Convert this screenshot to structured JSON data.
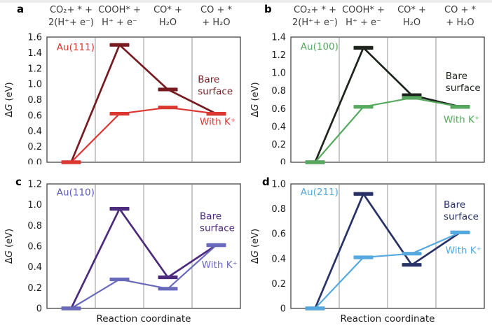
{
  "chart_data": {
    "type": "line",
    "title": "",
    "xlabel": "Reaction coordinate",
    "ylabel": "ΔG (eV)",
    "grid": false,
    "legend_position": "inline-annotations",
    "categories": [
      "CO₂+ * + 2(H⁺+ e⁻)",
      "COOH* + H⁺ + e⁻",
      "CO* + H₂O",
      "CO + * + H₂O"
    ],
    "column_headers": [
      {
        "line1": "CO₂+ * +",
        "line2": "2(H⁺+ e⁻)"
      },
      {
        "line1": "COOH* +",
        "line2": "H⁺ + e⁻"
      },
      {
        "line1": "CO* +",
        "line2": "H₂O"
      },
      {
        "line1": "CO + *",
        "line2": "+ H₂O"
      }
    ],
    "frame": {
      "border_color": "#454545",
      "separator_color": "#969696",
      "header_color": "#3b3b3b",
      "tick_color": "#1c1c1c"
    },
    "panels": [
      {
        "letter": "a",
        "surface": "Au(111)",
        "surface_label_color": "#db3832",
        "surface_label_pos": {
          "x_frac": 0.05,
          "y_ev": 1.43
        },
        "ylim": [
          0,
          1.6
        ],
        "ytick_step": 0.2,
        "ytick_labels": [
          "0.0",
          "0.2",
          "0.4",
          "0.6",
          "0.8",
          "1.0",
          "1.2",
          "1.4",
          "1.6"
        ],
        "show_headers": true,
        "show_xlabel": false,
        "series": [
          {
            "name": "Bare surface",
            "label_lines": [
              "Bare",
              "surface"
            ],
            "color": "#771b21",
            "values": [
              0.0,
              1.5,
              0.93,
              0.62
            ],
            "label_pos": {
              "x_frac": 0.78,
              "y_ev": 1.02
            }
          },
          {
            "name": "With K⁺",
            "label_lines": [
              "With K⁺"
            ],
            "color": "#db3832",
            "values": [
              0.0,
              0.62,
              0.7,
              0.62
            ],
            "label_pos": {
              "x_frac": 0.79,
              "y_ev": 0.48
            }
          }
        ]
      },
      {
        "letter": "b",
        "surface": "Au(100)",
        "surface_label_color": "#56a95e",
        "surface_label_pos": {
          "x_frac": 0.05,
          "y_ev": 1.26
        },
        "ylim": [
          0,
          1.4
        ],
        "ytick_step": 0.2,
        "ytick_labels": [
          "0",
          "0.2",
          "0.4",
          "0.6",
          "0.8",
          "1.0",
          "1.2",
          "1.4"
        ],
        "show_headers": true,
        "show_xlabel": false,
        "series": [
          {
            "name": "Bare surface",
            "label_lines": [
              "Bare",
              "surface"
            ],
            "color": "#1d241d",
            "values": [
              0.0,
              1.28,
              0.75,
              0.62
            ],
            "label_pos": {
              "x_frac": 0.8,
              "y_ev": 0.93
            }
          },
          {
            "name": "With K⁺",
            "label_lines": [
              "With K⁺"
            ],
            "color": "#56a95e",
            "values": [
              0.0,
              0.62,
              0.72,
              0.62
            ],
            "label_pos": {
              "x_frac": 0.79,
              "y_ev": 0.44
            }
          }
        ]
      },
      {
        "letter": "c",
        "surface": "Au(110)",
        "surface_label_color": "#5d5db8",
        "surface_label_pos": {
          "x_frac": 0.05,
          "y_ev": 1.09
        },
        "ylim": [
          0,
          1.2
        ],
        "ytick_step": 0.2,
        "ytick_labels": [
          "0",
          "0.2",
          "0.4",
          "0.6",
          "0.8",
          "1.0",
          "1.2"
        ],
        "show_headers": false,
        "show_xlabel": true,
        "series": [
          {
            "name": "Bare surface",
            "label_lines": [
              "Bare",
              "surface"
            ],
            "color": "#4c2a7c",
            "values": [
              0.0,
              0.96,
              0.3,
              0.61
            ],
            "label_pos": {
              "x_frac": 0.79,
              "y_ev": 0.86
            }
          },
          {
            "name": "With K⁺",
            "label_lines": [
              "With K⁺"
            ],
            "color": "#6a6abd",
            "values": [
              0.0,
              0.28,
              0.19,
              0.61
            ],
            "label_pos": {
              "x_frac": 0.8,
              "y_ev": 0.39
            }
          }
        ]
      },
      {
        "letter": "d",
        "surface": "Au(211)",
        "surface_label_color": "#55a9de",
        "surface_label_pos": {
          "x_frac": 0.05,
          "y_ev": 0.91
        },
        "ylim": [
          0,
          1.0
        ],
        "ytick_step": 0.2,
        "ytick_labels": [
          "0",
          "0.2",
          "0.4",
          "0.6",
          "0.8",
          "1.0"
        ],
        "show_headers": true,
        "show_xlabel": true,
        "series": [
          {
            "name": "Bare surface",
            "label_lines": [
              "Bare",
              "surface"
            ],
            "color": "#283266",
            "values": [
              0.0,
              0.92,
              0.35,
              0.61
            ],
            "label_pos": {
              "x_frac": 0.79,
              "y_ev": 0.81
            }
          },
          {
            "name": "With K⁺",
            "label_lines": [
              "With K⁺"
            ],
            "color": "#55a9de",
            "values": [
              0.0,
              0.41,
              0.44,
              0.61
            ],
            "label_pos": {
              "x_frac": 0.8,
              "y_ev": 0.44
            }
          }
        ]
      }
    ]
  }
}
